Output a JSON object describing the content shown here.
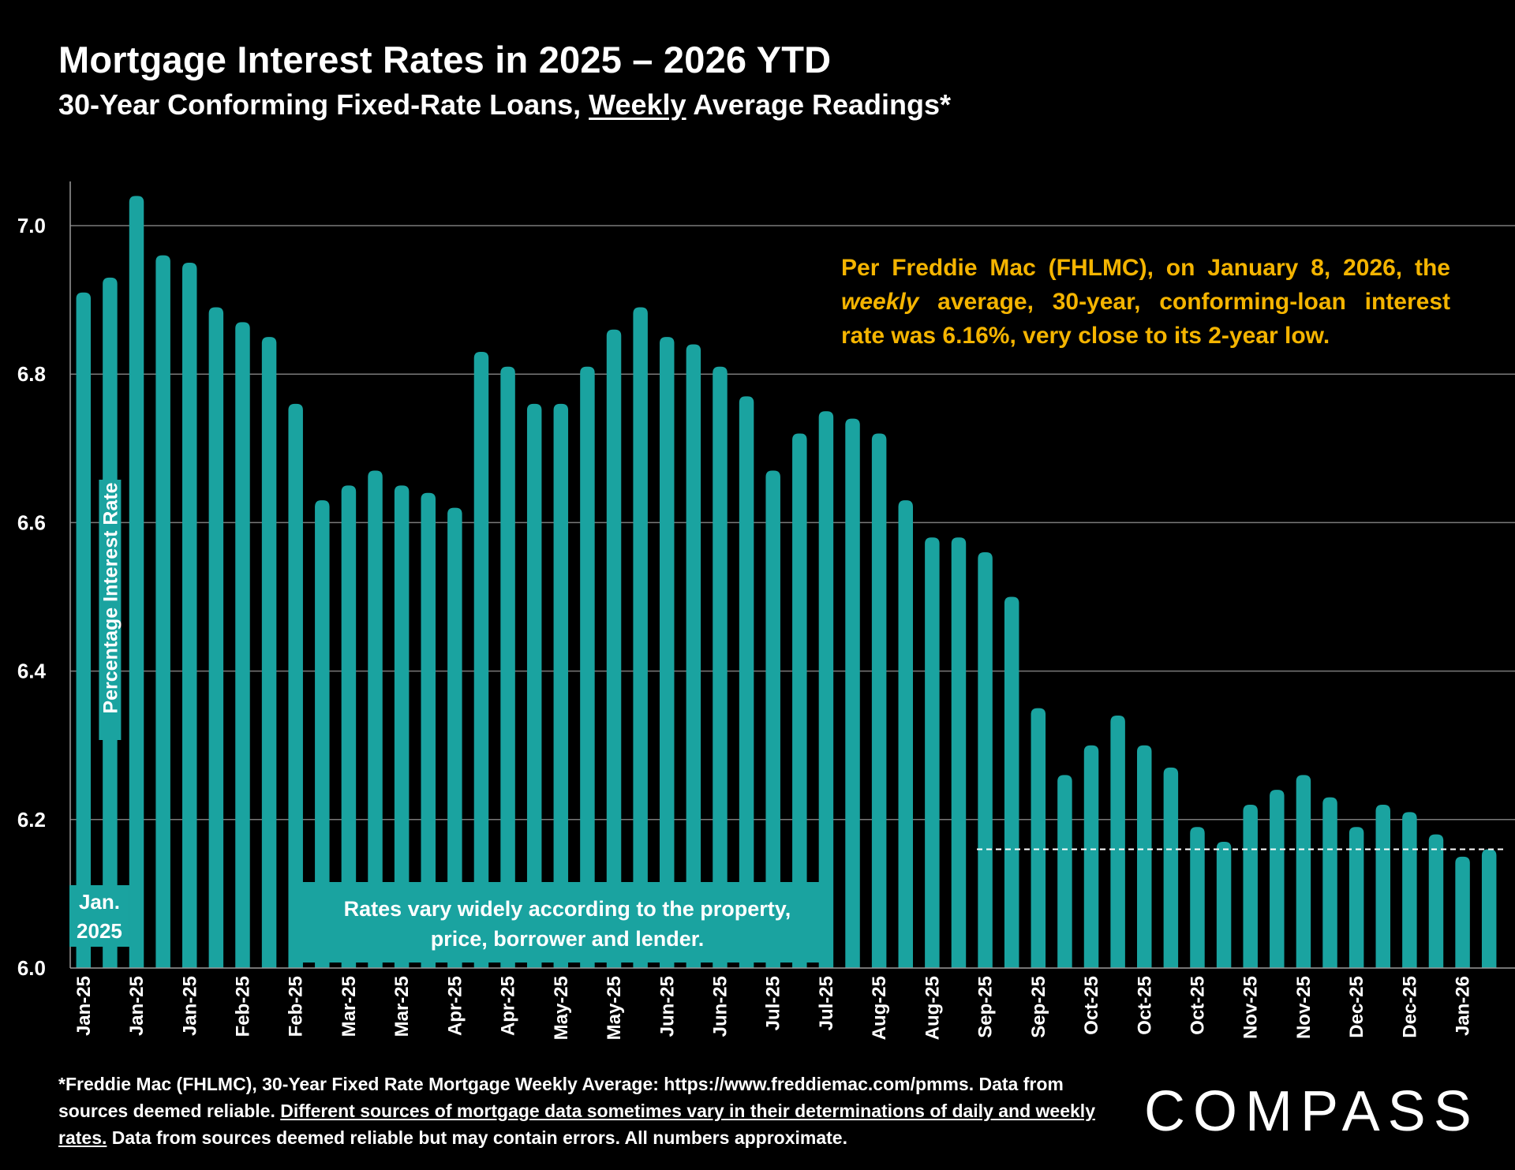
{
  "header": {
    "title": "Mortgage Interest Rates in 2025 – 2026 YTD",
    "subtitle_before": "30-Year Conforming Fixed-Rate Loans, ",
    "subtitle_underlined": "Weekly",
    "subtitle_after": " Average Readings*"
  },
  "colors": {
    "background": "#000000",
    "bar": "#1aa3a0",
    "callout": "#f4b400",
    "text": "#ffffff"
  },
  "callout": {
    "text_part1": "Per Freddie Mac (FHLMC), on January 8, 2026, the ",
    "text_italic": "weekly",
    "text_part2": " average, 30-year, conforming-loan interest rate was 6.16%, very close to its 2-year low."
  },
  "footnote": {
    "part1": "*Freddie Mac (FHLMC), 30-Year Fixed Rate Mortgage Weekly Average: https://www.freddiemac.com/pmms. Data from sources deemed reliable. ",
    "underlined": "Different sources of mortgage data sometimes vary in their determinations of daily and weekly rates.",
    "part2": " Data from sources deemed reliable but may contain errors. All numbers approximate."
  },
  "logo": {
    "text": "COMPASS"
  },
  "chart_data": {
    "type": "bar",
    "title": "Mortgage Interest Rates in 2025 – 2026 YTD",
    "subtitle": "30-Year Conforming Fixed-Rate Loans, Weekly Average Readings*",
    "xlabel": "",
    "ylabel": "Percentage Interest Rate",
    "ylim": [
      6.0,
      7.05
    ],
    "yticks": [
      6.0,
      6.2,
      6.4,
      6.6,
      6.8,
      7.0
    ],
    "ytick_labels": [
      "6.0",
      "6.2",
      "6.4",
      "6.6",
      "6.8",
      "7.0"
    ],
    "grid": true,
    "categories": [
      "Jan-25",
      "Jan-25",
      "Jan-25",
      "Jan-25",
      "Jan-25",
      "Feb-25",
      "Feb-25",
      "Feb-25",
      "Feb-25",
      "Mar-25",
      "Mar-25",
      "Mar-25",
      "Mar-25",
      "Apr-25",
      "Apr-25",
      "Apr-25",
      "Apr-25",
      "May-25",
      "May-25",
      "May-25",
      "May-25",
      "Jun-25",
      "Jun-25",
      "Jun-25",
      "Jun-25",
      "Jul-25",
      "Jul-25",
      "Jul-25",
      "Jul-25",
      "Jul-25",
      "Aug-25",
      "Aug-25",
      "Aug-25",
      "Aug-25",
      "Sep-25",
      "Sep-25",
      "Sep-25",
      "Sep-25",
      "Oct-25",
      "Oct-25",
      "Oct-25",
      "Oct-25",
      "Oct-25",
      "Nov-25",
      "Nov-25",
      "Nov-25",
      "Nov-25",
      "Dec-25",
      "Dec-25",
      "Dec-25",
      "Dec-25",
      "Jan-26",
      "Jan-26",
      "Jan-26"
    ],
    "series": [
      {
        "values": [
          6.91,
          6.93,
          7.04,
          6.96,
          6.95,
          6.89,
          6.87,
          6.85,
          6.76,
          6.63,
          6.65,
          6.67,
          6.65,
          6.64,
          6.62,
          6.83,
          6.81,
          6.76,
          6.76,
          6.81,
          6.86,
          6.89,
          6.85,
          6.84,
          6.81,
          6.77,
          6.67,
          6.72,
          6.75,
          6.74,
          6.72,
          6.63,
          6.58,
          6.58,
          6.56,
          6.5,
          6.35,
          6.26,
          6.3,
          6.34,
          6.3,
          6.27,
          6.19,
          6.17,
          6.22,
          6.24,
          6.26,
          6.23,
          6.19,
          6.22,
          6.21,
          6.18,
          6.15,
          6.16
        ]
      }
    ],
    "reference_line": {
      "value": 6.16,
      "style": "dashed"
    },
    "annotations": {
      "first_bar_label_line1": "Jan.",
      "first_bar_label_line2": "2025",
      "note_line1": "Rates vary widely according to the property,",
      "note_line2": "price, borrower and lender."
    }
  }
}
